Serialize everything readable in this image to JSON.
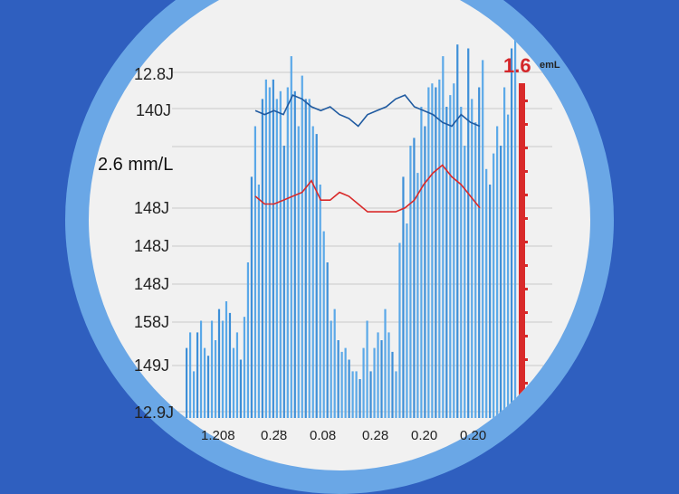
{
  "chart_data": {
    "type": "bar",
    "title": "",
    "xlabel": "",
    "ylabel": "2.6 mm/L",
    "y_tick_labels": [
      "12.8J",
      "140J",
      "148J",
      "148J",
      "148J",
      "158J",
      "149J",
      "12.9J"
    ],
    "x_tick_labels": [
      "1.208",
      "0.2̈8",
      "0.08",
      "0.28",
      "0.20",
      "0.20"
    ],
    "annotation": {
      "value": "1.6",
      "unit": "emL"
    },
    "ylim": [
      0,
      100
    ],
    "grid": true,
    "series": [
      {
        "values": [
          18,
          22,
          12,
          22,
          25,
          18,
          16,
          25,
          20,
          28,
          25,
          30,
          27,
          18,
          22,
          15,
          26,
          40,
          62,
          75,
          60,
          82,
          87,
          85,
          87,
          82,
          84,
          70,
          85,
          93,
          84,
          75,
          88,
          82,
          82,
          75,
          73,
          60,
          48,
          40,
          25,
          28,
          20,
          17,
          18,
          15,
          12,
          12,
          10,
          18,
          25,
          12,
          18,
          22,
          20,
          28,
          22,
          17,
          12,
          45,
          62,
          50,
          70,
          72,
          63,
          80,
          75,
          85,
          86,
          85,
          87,
          93,
          80,
          83,
          86,
          96,
          80,
          70,
          95,
          82,
          76,
          85,
          92,
          64,
          60,
          68,
          75,
          70,
          85,
          78,
          95,
          100
        ]
      }
    ],
    "overlay_lines": [
      {
        "color": "#1f5aa0",
        "values": [
          79,
          78,
          79,
          78,
          83,
          82,
          80,
          79,
          80,
          78,
          77,
          75,
          78,
          79,
          80,
          82,
          83,
          80,
          79,
          78,
          76,
          75,
          78,
          76,
          75
        ]
      },
      {
        "color": "#d92a2a",
        "values": [
          57,
          55,
          55,
          56,
          57,
          58,
          61,
          56,
          56,
          58,
          57,
          55,
          53,
          53,
          53,
          53,
          54,
          56,
          60,
          63,
          65,
          62,
          60,
          57,
          54
        ]
      }
    ]
  }
}
